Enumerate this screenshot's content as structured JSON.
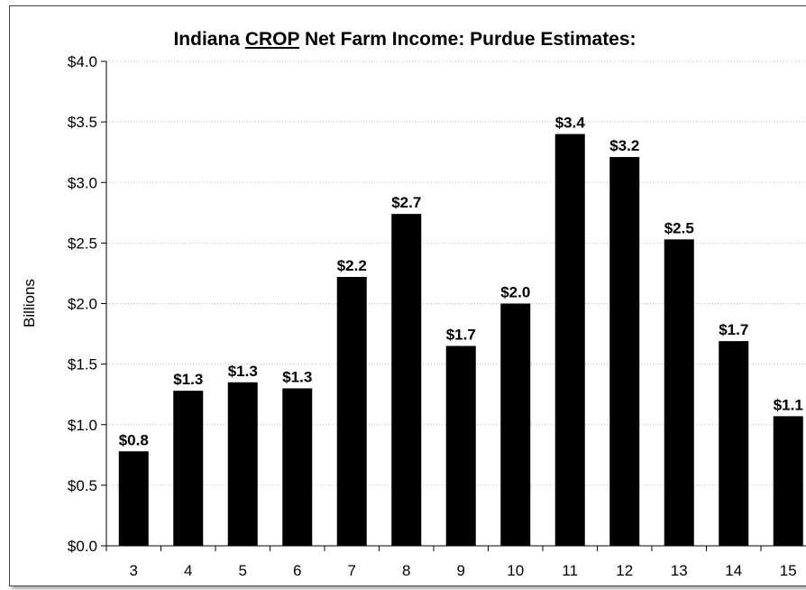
{
  "chart_data": {
    "type": "bar",
    "title_parts": [
      {
        "text": "Indiana ",
        "underline": false
      },
      {
        "text": "CROP",
        "underline": true
      },
      {
        "text": " Net Farm Income: Purdue Estimates:",
        "underline": false
      }
    ],
    "xlabel": "",
    "ylabel": "Billions",
    "categories": [
      "3",
      "4",
      "5",
      "6",
      "7",
      "8",
      "9",
      "10",
      "11",
      "12",
      "13",
      "14",
      "15"
    ],
    "values": [
      0.78,
      1.28,
      1.35,
      1.3,
      2.22,
      2.74,
      1.65,
      2.0,
      3.4,
      3.21,
      2.53,
      1.69,
      1.07
    ],
    "data_labels": [
      "$0.8",
      "$1.3",
      "$1.3",
      "$1.3",
      "$2.2",
      "$2.7",
      "$1.7",
      "$2.0",
      "$3.4",
      "$3.2",
      "$2.5",
      "$1.7",
      "$1.1"
    ],
    "ylim": [
      0,
      4.0
    ],
    "yticks": [
      0,
      0.5,
      1.0,
      1.5,
      2.0,
      2.5,
      3.0,
      3.5,
      4.0
    ],
    "ytick_labels": [
      "$0.0",
      "$0.5",
      "$1.0",
      "$1.5",
      "$2.0",
      "$2.5",
      "$3.0",
      "$3.5",
      "$4.0"
    ],
    "bar_color": "#000000",
    "grid_color": "#bfbfbf",
    "grid": true,
    "legend": "none"
  }
}
